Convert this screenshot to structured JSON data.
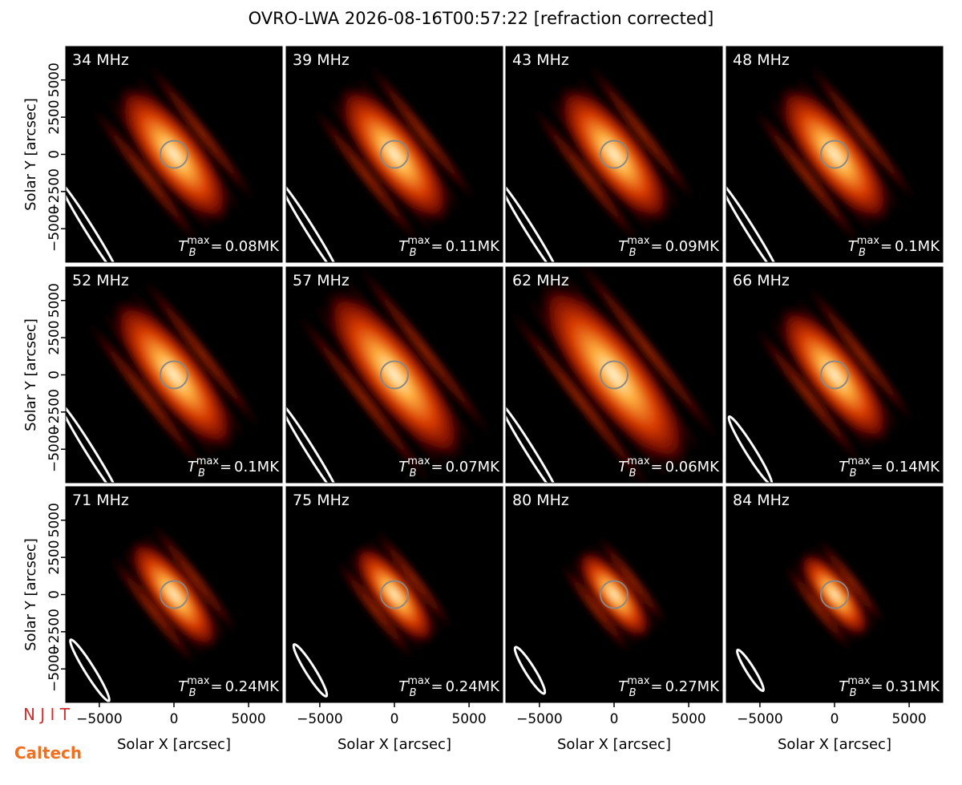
{
  "chart_data": {
    "type": "image-grid",
    "title": "OVRO-LWA 2026-08-16T00:57:22 [refraction corrected]",
    "xlabel": "Solar X [arcsec]",
    "ylabel": "Solar Y [arcsec]",
    "xlim": [
      -7250,
      7250
    ],
    "ylim": [
      -7250,
      7250
    ],
    "xticks": [
      {
        "value": -5000,
        "label": "−5000"
      },
      0,
      5000
    ],
    "yticks": [
      {
        "value": -5000,
        "label": "−5000"
      },
      {
        "value": -2500,
        "label": "−2500"
      },
      0,
      2500,
      5000
    ],
    "tb_symbol": "T",
    "tb_sub": "B",
    "tb_sup": "max",
    "tb_eq": "=",
    "panels": [
      {
        "freq": "34 MHz",
        "tb_max": "0.08MK"
      },
      {
        "freq": "39 MHz",
        "tb_max": "0.11MK"
      },
      {
        "freq": "43 MHz",
        "tb_max": "0.09MK"
      },
      {
        "freq": "48 MHz",
        "tb_max": "0.1MK"
      },
      {
        "freq": "52 MHz",
        "tb_max": "0.1MK"
      },
      {
        "freq": "57 MHz",
        "tb_max": "0.07MK"
      },
      {
        "freq": "62 MHz",
        "tb_max": "0.06MK"
      },
      {
        "freq": "66 MHz",
        "tb_max": "0.14MK"
      },
      {
        "freq": "71 MHz",
        "tb_max": "0.24MK"
      },
      {
        "freq": "75 MHz",
        "tb_max": "0.24MK"
      },
      {
        "freq": "80 MHz",
        "tb_max": "0.27MK"
      },
      {
        "freq": "84 MHz",
        "tb_max": "0.31MK"
      }
    ],
    "logos": [
      "N J I T",
      "Caltech"
    ]
  }
}
